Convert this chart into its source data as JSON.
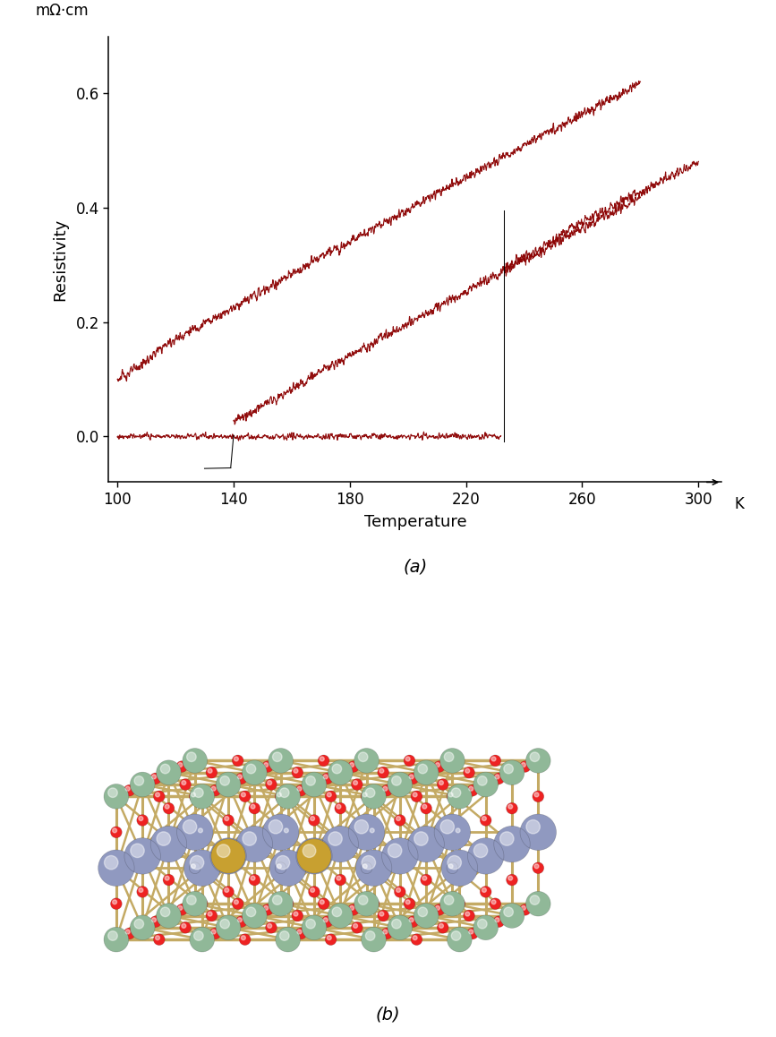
{
  "title_a": "(a)",
  "title_b": "(b)",
  "ylabel": "Resistivity",
  "ylabel_top": "mΩ·cm",
  "xlabel": "Temperature",
  "xlabel_unit": "K",
  "xlim": [
    100,
    305
  ],
  "ylim": [
    -0.08,
    0.68
  ],
  "xticks": [
    100,
    140,
    180,
    220,
    260,
    300
  ],
  "yticks": [
    0,
    0.2,
    0.4,
    0.6
  ],
  "curve_color": "#8B0000",
  "line_color": "#000000",
  "noise_amplitude": 0.007,
  "bg_color": "#ffffff",
  "atom_colors": {
    "green": "#90B898",
    "red": "#EE2222",
    "blue_gray": "#9099C0",
    "yellow": "#C8A030",
    "rod": "#C4AA64"
  }
}
